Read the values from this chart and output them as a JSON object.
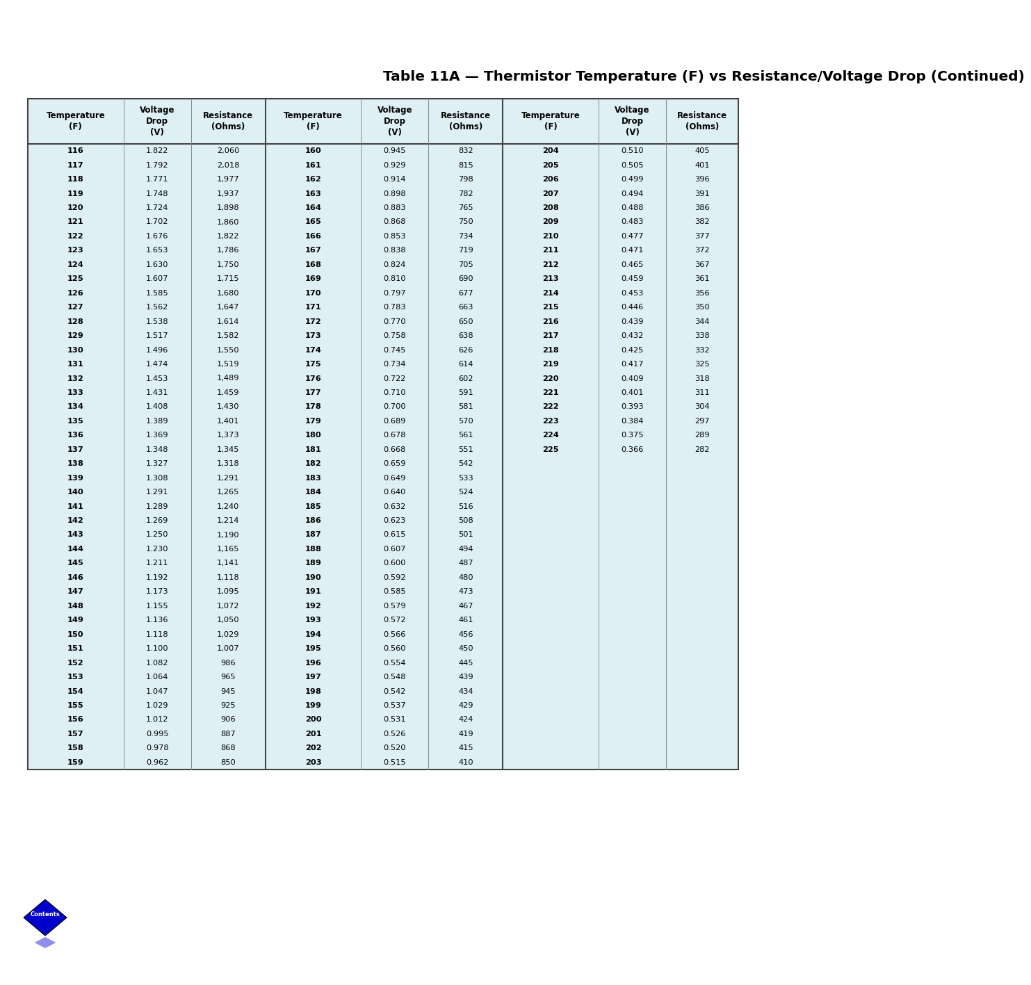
{
  "title": "Table 11A — Thermistor Temperature (F) vs Resistance/Voltage Drop (Continued)",
  "title_fontsize": 14,
  "bg_color": "#dff0f5",
  "header_bg": "#dff0f5",
  "col1_data": [
    [
      "116",
      "1.822",
      "2,060"
    ],
    [
      "117",
      "1.792",
      "2,018"
    ],
    [
      "118",
      "1.771",
      "1,977"
    ],
    [
      "119",
      "1.748",
      "1,937"
    ],
    [
      "120",
      "1.724",
      "1,898"
    ],
    [
      "121",
      "1.702",
      "1,860"
    ],
    [
      "122",
      "1.676",
      "1,822"
    ],
    [
      "123",
      "1.653",
      "1,786"
    ],
    [
      "124",
      "1.630",
      "1,750"
    ],
    [
      "125",
      "1.607",
      "1,715"
    ],
    [
      "126",
      "1.585",
      "1,680"
    ],
    [
      "127",
      "1.562",
      "1,647"
    ],
    [
      "128",
      "1.538",
      "1,614"
    ],
    [
      "129",
      "1.517",
      "1,582"
    ],
    [
      "130",
      "1.496",
      "1,550"
    ],
    [
      "131",
      "1.474",
      "1,519"
    ],
    [
      "132",
      "1.453",
      "1,489"
    ],
    [
      "133",
      "1.431",
      "1,459"
    ],
    [
      "134",
      "1.408",
      "1,430"
    ],
    [
      "135",
      "1.389",
      "1,401"
    ],
    [
      "136",
      "1.369",
      "1,373"
    ],
    [
      "137",
      "1.348",
      "1,345"
    ],
    [
      "138",
      "1.327",
      "1,318"
    ],
    [
      "139",
      "1.308",
      "1,291"
    ],
    [
      "140",
      "1.291",
      "1,265"
    ],
    [
      "141",
      "1.289",
      "1,240"
    ],
    [
      "142",
      "1.269",
      "1,214"
    ],
    [
      "143",
      "1.250",
      "1,190"
    ],
    [
      "144",
      "1.230",
      "1,165"
    ],
    [
      "145",
      "1.211",
      "1,141"
    ],
    [
      "146",
      "1.192",
      "1,118"
    ],
    [
      "147",
      "1.173",
      "1,095"
    ],
    [
      "148",
      "1.155",
      "1,072"
    ],
    [
      "149",
      "1.136",
      "1,050"
    ],
    [
      "150",
      "1.118",
      "1,029"
    ],
    [
      "151",
      "1.100",
      "1,007"
    ],
    [
      "152",
      "1.082",
      "986"
    ],
    [
      "153",
      "1.064",
      "965"
    ],
    [
      "154",
      "1.047",
      "945"
    ],
    [
      "155",
      "1.029",
      "925"
    ],
    [
      "156",
      "1.012",
      "906"
    ],
    [
      "157",
      "0.995",
      "887"
    ],
    [
      "158",
      "0.978",
      "868"
    ],
    [
      "159",
      "0.962",
      "850"
    ]
  ],
  "col2_data": [
    [
      "160",
      "0.945",
      "832"
    ],
    [
      "161",
      "0.929",
      "815"
    ],
    [
      "162",
      "0.914",
      "798"
    ],
    [
      "163",
      "0.898",
      "782"
    ],
    [
      "164",
      "0.883",
      "765"
    ],
    [
      "165",
      "0.868",
      "750"
    ],
    [
      "166",
      "0.853",
      "734"
    ],
    [
      "167",
      "0.838",
      "719"
    ],
    [
      "168",
      "0.824",
      "705"
    ],
    [
      "169",
      "0.810",
      "690"
    ],
    [
      "170",
      "0.797",
      "677"
    ],
    [
      "171",
      "0.783",
      "663"
    ],
    [
      "172",
      "0.770",
      "650"
    ],
    [
      "173",
      "0.758",
      "638"
    ],
    [
      "174",
      "0.745",
      "626"
    ],
    [
      "175",
      "0.734",
      "614"
    ],
    [
      "176",
      "0.722",
      "602"
    ],
    [
      "177",
      "0.710",
      "591"
    ],
    [
      "178",
      "0.700",
      "581"
    ],
    [
      "179",
      "0.689",
      "570"
    ],
    [
      "180",
      "0.678",
      "561"
    ],
    [
      "181",
      "0.668",
      "551"
    ],
    [
      "182",
      "0.659",
      "542"
    ],
    [
      "183",
      "0.649",
      "533"
    ],
    [
      "184",
      "0.640",
      "524"
    ],
    [
      "185",
      "0.632",
      "516"
    ],
    [
      "186",
      "0.623",
      "508"
    ],
    [
      "187",
      "0.615",
      "501"
    ],
    [
      "188",
      "0.607",
      "494"
    ],
    [
      "189",
      "0.600",
      "487"
    ],
    [
      "190",
      "0.592",
      "480"
    ],
    [
      "191",
      "0.585",
      "473"
    ],
    [
      "192",
      "0.579",
      "467"
    ],
    [
      "193",
      "0.572",
      "461"
    ],
    [
      "194",
      "0.566",
      "456"
    ],
    [
      "195",
      "0.560",
      "450"
    ],
    [
      "196",
      "0.554",
      "445"
    ],
    [
      "197",
      "0.548",
      "439"
    ],
    [
      "198",
      "0.542",
      "434"
    ],
    [
      "199",
      "0.537",
      "429"
    ],
    [
      "200",
      "0.531",
      "424"
    ],
    [
      "201",
      "0.526",
      "419"
    ],
    [
      "202",
      "0.520",
      "415"
    ],
    [
      "203",
      "0.515",
      "410"
    ]
  ],
  "col3_data": [
    [
      "204",
      "0.510",
      "405"
    ],
    [
      "205",
      "0.505",
      "401"
    ],
    [
      "206",
      "0.499",
      "396"
    ],
    [
      "207",
      "0.494",
      "391"
    ],
    [
      "208",
      "0.488",
      "386"
    ],
    [
      "209",
      "0.483",
      "382"
    ],
    [
      "210",
      "0.477",
      "377"
    ],
    [
      "211",
      "0.471",
      "372"
    ],
    [
      "212",
      "0.465",
      "367"
    ],
    [
      "213",
      "0.459",
      "361"
    ],
    [
      "214",
      "0.453",
      "356"
    ],
    [
      "215",
      "0.446",
      "350"
    ],
    [
      "216",
      "0.439",
      "344"
    ],
    [
      "217",
      "0.432",
      "338"
    ],
    [
      "218",
      "0.425",
      "332"
    ],
    [
      "219",
      "0.417",
      "325"
    ],
    [
      "220",
      "0.409",
      "318"
    ],
    [
      "221",
      "0.401",
      "311"
    ],
    [
      "222",
      "0.393",
      "304"
    ],
    [
      "223",
      "0.384",
      "297"
    ],
    [
      "224",
      "0.375",
      "289"
    ],
    [
      "225",
      "0.366",
      "282"
    ]
  ],
  "diamond_color": "#0000cc",
  "diamond_text": "Contents",
  "page_bg": "#ffffff"
}
